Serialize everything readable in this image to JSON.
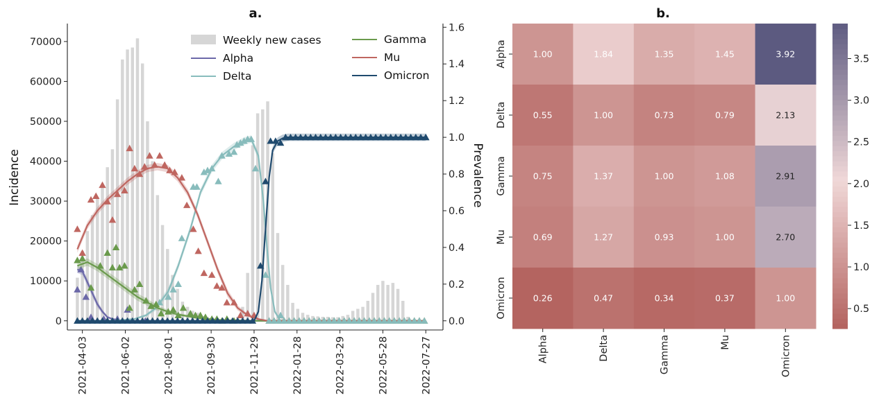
{
  "chart_data": [
    {
      "type": "bar+line",
      "title": "a.",
      "ylabel": "Incidence",
      "y2label": "Prevalence",
      "ylim": [
        -2300,
        74500
      ],
      "y2lim": [
        -0.05,
        1.62
      ],
      "y_ticks": [
        0,
        10000,
        20000,
        30000,
        40000,
        50000,
        60000,
        70000
      ],
      "y2_ticks": [
        "0.0",
        "0.2",
        "0.4",
        "0.6",
        "0.8",
        "1.0",
        "1.2",
        "1.4",
        "1.6"
      ],
      "x_ticks": [
        "2021-04-03",
        "2021-06-02",
        "2021-08-01",
        "2021-09-30",
        "2021-11-29",
        "2022-01-28",
        "2022-03-29",
        "2022-05-28",
        "2022-07-27"
      ],
      "x_start_date": "2021-03-13",
      "x_end_date": "2022-08-20",
      "bars": {
        "name": "Weekly new cases",
        "color": "#d6d6d6",
        "start_date": "2021-03-27",
        "interval_days": 7,
        "values": [
          10800,
          17500,
          22500,
          26500,
          31000,
          34000,
          38500,
          43000,
          55500,
          65500,
          68000,
          68500,
          70800,
          64500,
          50000,
          40000,
          31500,
          24000,
          18000,
          11500,
          8000,
          4800,
          3500,
          2500,
          2000,
          1200,
          1000,
          800,
          600,
          500,
          500,
          700,
          1000,
          3500,
          12000,
          44000,
          52000,
          53000,
          55000,
          42000,
          22000,
          14000,
          9000,
          4500,
          3000,
          2000,
          1500,
          1200,
          1100,
          1000,
          1000,
          900,
          900,
          1200,
          1500,
          2500,
          3000,
          3500,
          5000,
          7000,
          9000,
          10000,
          9000,
          9500,
          8000,
          5000,
          1000
        ]
      },
      "series": [
        {
          "name": "Alpha",
          "color": "#6b68a8",
          "line_x": [
            "2021-03-27",
            "2021-04-03",
            "2021-04-10",
            "2021-04-17",
            "2021-04-24",
            "2021-05-01",
            "2021-05-08",
            "2021-05-15",
            "2021-05-22",
            "2021-05-29",
            "2021-06-30",
            "2021-08-01",
            "2022-07-27"
          ],
          "line_y": [
            0.28,
            0.27,
            0.21,
            0.15,
            0.09,
            0.05,
            0.02,
            0.01,
            0.005,
            0.0,
            0.0,
            0.0,
            0.0
          ],
          "points_x": [
            "2021-03-27",
            "2021-04-01",
            "2021-04-08",
            "2021-04-15",
            "2021-05-03",
            "2021-05-22",
            "2021-06-05",
            "2021-06-30"
          ],
          "points_y": [
            0.17,
            0.28,
            0.13,
            0.02,
            0.01,
            0.01,
            0.06,
            0.0
          ]
        },
        {
          "name": "Delta",
          "color": "#88bcbc",
          "line_x": [
            "2021-03-27",
            "2021-05-15",
            "2021-06-15",
            "2021-07-01",
            "2021-07-15",
            "2021-08-01",
            "2021-08-15",
            "2021-09-01",
            "2021-09-15",
            "2021-10-01",
            "2021-10-15",
            "2021-11-01",
            "2021-11-15",
            "2021-11-25",
            "2021-12-05",
            "2021-12-12",
            "2021-12-17",
            "2021-12-22",
            "2021-12-28",
            "2022-01-05",
            "2022-07-27"
          ],
          "line_y": [
            0.0,
            0.0,
            0.01,
            0.03,
            0.07,
            0.16,
            0.3,
            0.5,
            0.7,
            0.83,
            0.9,
            0.95,
            0.98,
            0.99,
            0.9,
            0.65,
            0.4,
            0.18,
            0.05,
            0.0,
            0.0
          ],
          "points_x": [
            "2021-07-20",
            "2021-08-01",
            "2021-08-08",
            "2021-08-15",
            "2021-08-20",
            "2021-09-05",
            "2021-09-10",
            "2021-09-20",
            "2021-09-25",
            "2021-10-01",
            "2021-10-10",
            "2021-10-15",
            "2021-10-25",
            "2021-11-01",
            "2021-11-05",
            "2021-11-10",
            "2021-11-15",
            "2021-11-20",
            "2021-11-25",
            "2021-12-01",
            "2021-12-15",
            "2022-01-05"
          ],
          "points_y": [
            0.1,
            0.13,
            0.17,
            0.2,
            0.45,
            0.73,
            0.73,
            0.81,
            0.82,
            0.83,
            0.76,
            0.9,
            0.91,
            0.92,
            0.96,
            0.97,
            0.98,
            0.99,
            0.99,
            0.83,
            0.25,
            0.03
          ]
        },
        {
          "name": "Gamma",
          "color": "#6a9a4c",
          "line_x": [
            "2021-03-27",
            "2021-04-10",
            "2021-04-24",
            "2021-05-08",
            "2021-05-22",
            "2021-06-05",
            "2021-06-19",
            "2021-07-03",
            "2021-07-17",
            "2021-07-31",
            "2021-08-14",
            "2021-08-28",
            "2021-09-11",
            "2021-09-25",
            "2021-10-09",
            "2021-10-23",
            "2021-11-06",
            "2021-11-20",
            "2021-12-04",
            "2022-07-27"
          ],
          "line_y": [
            0.3,
            0.32,
            0.29,
            0.25,
            0.21,
            0.17,
            0.13,
            0.1,
            0.07,
            0.05,
            0.035,
            0.025,
            0.015,
            0.01,
            0.005,
            0.003,
            0.002,
            0.001,
            0.0,
            0.0
          ],
          "points_x": [
            "2021-03-27",
            "2021-04-03",
            "2021-04-15",
            "2021-04-28",
            "2021-05-08",
            "2021-05-15",
            "2021-05-20",
            "2021-05-25",
            "2021-06-01",
            "2021-06-08",
            "2021-06-15",
            "2021-06-22",
            "2021-07-01",
            "2021-07-08",
            "2021-07-15",
            "2021-07-22",
            "2021-08-01",
            "2021-08-08",
            "2021-08-15",
            "2021-08-22",
            "2021-09-01",
            "2021-09-08",
            "2021-09-15",
            "2021-09-22",
            "2021-10-01",
            "2021-10-08",
            "2021-10-15",
            "2021-10-22",
            "2021-11-01"
          ],
          "points_y": [
            0.33,
            0.34,
            0.18,
            0.3,
            0.37,
            0.29,
            0.4,
            0.29,
            0.3,
            0.07,
            0.17,
            0.2,
            0.11,
            0.08,
            0.09,
            0.04,
            0.05,
            0.06,
            0.03,
            0.07,
            0.04,
            0.03,
            0.03,
            0.02,
            0.01,
            0.01,
            0.0,
            0.01,
            0.0
          ]
        },
        {
          "name": "Mu",
          "color": "#bf6660",
          "line_x": [
            "2021-03-27",
            "2021-04-10",
            "2021-04-24",
            "2021-05-08",
            "2021-05-22",
            "2021-06-05",
            "2021-06-19",
            "2021-07-03",
            "2021-07-17",
            "2021-07-31",
            "2021-08-14",
            "2021-08-28",
            "2021-09-11",
            "2021-09-25",
            "2021-10-09",
            "2021-10-23",
            "2021-11-06",
            "2021-11-20",
            "2021-12-04",
            "2021-12-18",
            "2022-01-01",
            "2022-07-27"
          ],
          "line_y": [
            0.39,
            0.52,
            0.6,
            0.66,
            0.71,
            0.76,
            0.8,
            0.83,
            0.84,
            0.83,
            0.78,
            0.7,
            0.58,
            0.43,
            0.28,
            0.15,
            0.07,
            0.03,
            0.01,
            0.0,
            0.0,
            0.0
          ],
          "points_x": [
            "2021-03-27",
            "2021-04-03",
            "2021-04-15",
            "2021-04-22",
            "2021-05-01",
            "2021-05-08",
            "2021-05-15",
            "2021-05-22",
            "2021-06-01",
            "2021-06-08",
            "2021-06-15",
            "2021-06-22",
            "2021-06-29",
            "2021-07-06",
            "2021-07-13",
            "2021-07-20",
            "2021-07-27",
            "2021-08-03",
            "2021-08-10",
            "2021-08-20",
            "2021-08-27",
            "2021-09-05",
            "2021-09-12",
            "2021-09-20",
            "2021-10-01",
            "2021-10-08",
            "2021-10-15",
            "2021-10-22",
            "2021-11-01",
            "2021-11-10",
            "2021-11-20",
            "2021-11-29"
          ],
          "points_y": [
            0.5,
            0.37,
            0.66,
            0.68,
            0.74,
            0.65,
            0.55,
            0.69,
            0.71,
            0.94,
            0.83,
            0.8,
            0.84,
            0.9,
            0.85,
            0.9,
            0.85,
            0.82,
            0.81,
            0.78,
            0.63,
            0.5,
            0.38,
            0.26,
            0.25,
            0.19,
            0.18,
            0.1,
            0.1,
            0.03,
            0.04,
            0.03
          ]
        },
        {
          "name": "Omicron",
          "color": "#1f4a6e",
          "line_x": [
            "2021-03-27",
            "2021-11-29",
            "2021-12-05",
            "2021-12-10",
            "2021-12-15",
            "2021-12-20",
            "2021-12-25",
            "2022-01-01",
            "2022-01-08",
            "2022-01-15",
            "2022-07-27"
          ],
          "line_y": [
            0.0,
            0.0,
            0.05,
            0.22,
            0.5,
            0.78,
            0.93,
            0.98,
            0.995,
            1.0,
            1.0
          ],
          "points_x": [
            "2021-03-27",
            "2021-12-08",
            "2021-12-15",
            "2021-12-22",
            "2021-12-29",
            "2022-01-05",
            "2022-01-12",
            "2022-07-27"
          ],
          "points_y": [
            0.0,
            0.3,
            0.76,
            0.98,
            0.98,
            0.97,
            1.0,
            1.0
          ],
          "flat_zero_from": "2021-03-27",
          "flat_zero_to": "2021-12-01",
          "flat_one_from": "2022-01-12",
          "flat_one_to": "2022-07-27"
        }
      ],
      "legend": {
        "placement": "upper-center, two columns"
      }
    },
    {
      "type": "heatmap",
      "title": "b.",
      "rows": [
        "Alpha",
        "Delta",
        "Gamma",
        "Mu",
        "Omicron"
      ],
      "columns": [
        "Alpha",
        "Delta",
        "Gamma",
        "Mu",
        "Omicron"
      ],
      "values": [
        [
          "1.00",
          "1.84",
          "1.35",
          "1.45",
          "3.92"
        ],
        [
          "0.55",
          "1.00",
          "0.73",
          "0.79",
          "2.13"
        ],
        [
          "0.75",
          "1.37",
          "1.00",
          "1.08",
          "2.91"
        ],
        [
          "0.69",
          "1.27",
          "0.93",
          "1.00",
          "2.70"
        ],
        [
          "0.26",
          "0.47",
          "0.34",
          "0.37",
          "1.00"
        ]
      ],
      "colorbar": {
        "min": 0.26,
        "max": 3.92,
        "ticks": [
          "0.5",
          "1.0",
          "1.5",
          "2.0",
          "2.5",
          "3.0",
          "3.5"
        ]
      },
      "colors": {
        "low": "#b46460",
        "mid": "#f0d8d8",
        "high": "#5c5a80"
      }
    }
  ]
}
